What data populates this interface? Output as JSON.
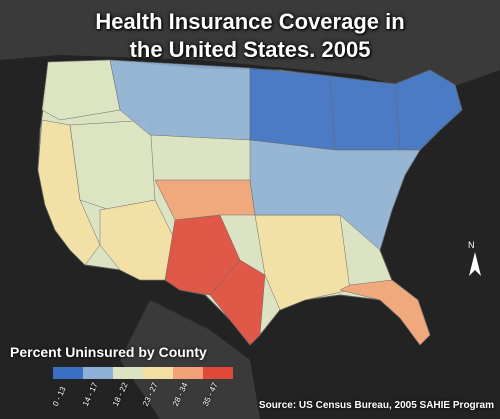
{
  "title_line1": "Health Insurance Coverage in",
  "title_line2": "the United States. 2005",
  "legend": {
    "title": "Percent Uninsured by County",
    "classes": [
      {
        "label": "0 - 13",
        "color": "#3a6fc4"
      },
      {
        "label": "14 - 17",
        "color": "#8eb0d6"
      },
      {
        "label": "18 - 22",
        "color": "#dce3c2"
      },
      {
        "label": "23 - 27",
        "color": "#f4e0a3"
      },
      {
        "label": "28 - 34",
        "color": "#f2a276"
      },
      {
        "label": "35 - 47",
        "color": "#e0483a"
      }
    ]
  },
  "north_arrow": "N",
  "source": "Source: US Census Bureau, 2005 SAHIE Program",
  "colors": {
    "ocean": "#222222",
    "land_outside": "#3b3b3b",
    "accent_low": "#3a6fc4",
    "accent_high": "#e0483a"
  },
  "regions": [
    {
      "name": "pacific-northwest",
      "class": 2
    },
    {
      "name": "california",
      "class": 3
    },
    {
      "name": "nevada-utah",
      "class": 2
    },
    {
      "name": "northern-plains",
      "class": 1
    },
    {
      "name": "upper-midwest",
      "class": 0
    },
    {
      "name": "great-lakes",
      "class": 0
    },
    {
      "name": "northeast",
      "class": 0
    },
    {
      "name": "southwest",
      "class": 3
    },
    {
      "name": "texas-west",
      "class": 5
    },
    {
      "name": "texas-south",
      "class": 5
    },
    {
      "name": "oklahoma",
      "class": 4
    },
    {
      "name": "deep-south",
      "class": 3
    },
    {
      "name": "florida",
      "class": 4
    },
    {
      "name": "mid-atlantic",
      "class": 1
    }
  ]
}
